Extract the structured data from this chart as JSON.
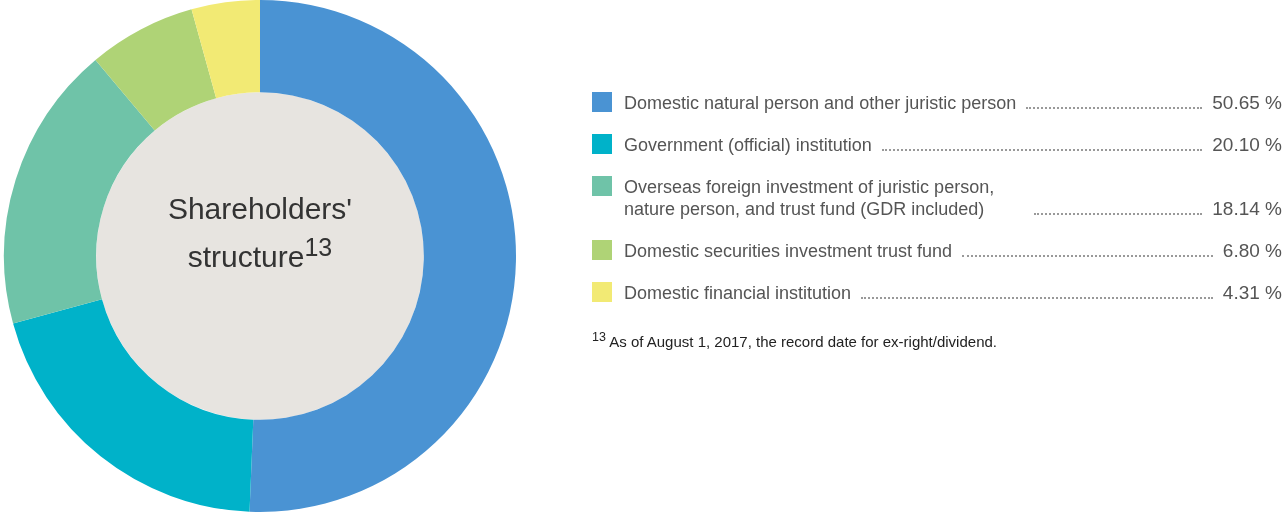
{
  "chart_data": {
    "type": "donut",
    "title": "Shareholders' structure$^{13}$",
    "categories": [
      "Domestic natural person and other juristic person",
      "Government (official) institution",
      "Overseas foreign investment of juristic person, nature person, and trust fund (GDR included)",
      "Domestic securities investment trust fund",
      "Domestic financial institution"
    ],
    "values": [
      50.65,
      20.1,
      18.14,
      6.8,
      4.31
    ],
    "colors": [
      "#4a93d3",
      "#00b2c9",
      "#6fc3a8",
      "#afd376",
      "#f2ea74"
    ],
    "value_labels": [
      "50.65 %",
      "20.10 %",
      "18.14 %",
      "6.80 %",
      "4.31 %"
    ],
    "legend": "right",
    "annotations": [
      "$^{13}$ As of August 1, 2017, the record date for ex-right/dividend."
    ]
  }
}
